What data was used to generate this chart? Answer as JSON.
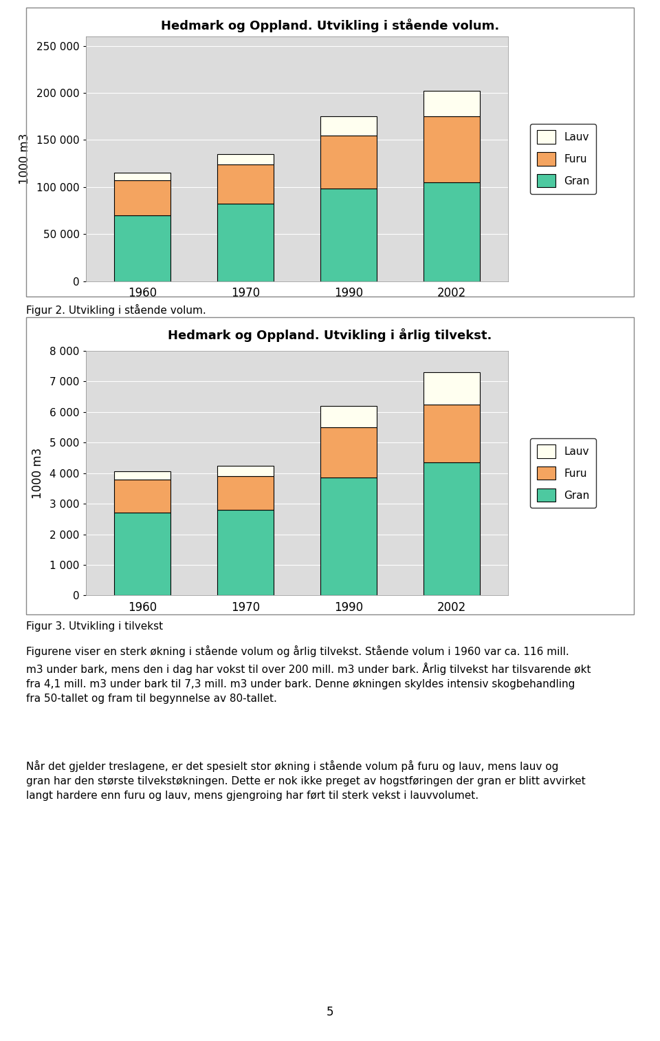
{
  "chart1": {
    "title": "Hedmark og Oppland. Utvikling i stående volum.",
    "ylabel": "1000 m3",
    "years": [
      "1960",
      "1970",
      "1990",
      "2002"
    ],
    "gran": [
      70000,
      82000,
      98000,
      105000
    ],
    "furu": [
      37000,
      42000,
      57000,
      70000
    ],
    "lauv": [
      8000,
      11000,
      20000,
      27000
    ],
    "ylim": [
      0,
      260000
    ],
    "yticks": [
      0,
      50000,
      100000,
      150000,
      200000,
      250000
    ],
    "ytick_labels": [
      "0",
      "50 000",
      "100 000",
      "150 000",
      "200 000",
      "250 000"
    ]
  },
  "chart2": {
    "title": "Hedmark og Oppland. Utvikling i årlig tilvekst.",
    "ylabel": "1000 m3",
    "years": [
      "1960",
      "1970",
      "1990",
      "2002"
    ],
    "gran": [
      2700,
      2800,
      3850,
      4350
    ],
    "furu": [
      1100,
      1100,
      1650,
      1900
    ],
    "lauv": [
      250,
      350,
      700,
      1050
    ],
    "ylim": [
      0,
      8000
    ],
    "yticks": [
      0,
      1000,
      2000,
      3000,
      4000,
      5000,
      6000,
      7000,
      8000
    ],
    "ytick_labels": [
      "0",
      "1 000",
      "2 000",
      "3 000",
      "4 000",
      "5 000",
      "6 000",
      "7 000",
      "8 000"
    ]
  },
  "colors": {
    "gran": "#4DC9A0",
    "furu": "#F4A460",
    "lauv": "#FFFFF0"
  },
  "bar_edge_color": "#000000",
  "bar_width": 0.55,
  "bg_color": "#DCDCDC",
  "fig_bg": "#FFFFFF",
  "figcaption1": "Figur 2. Utvikling i stående volum.",
  "figcaption2": "Figur 3. Utvikling i tilvekst",
  "body_text1_line1": "Figurene viser en sterk økning i stående volum og årlig tilvekst. Stående volum i 1960 var ca. 116 mill.",
  "body_text1_line2": "m3 under bark, mens den i dag har vokst til over 200 mill. m3 under bark. Årlig tilvekst har tilsvarende økt",
  "body_text1_line3": "fra 4,1 mill. m3 under bark til 7,3 mill. m3 under bark. Denne økningen skyldes intensiv skogbehandling",
  "body_text1_line4": "fra 50-tallet og fram til begynnelse av 80-tallet.",
  "body_text2_line1": "Når det gjelder treslagene, er det spesielt stor økning i stående volum på furu og lauv, mens lauv og",
  "body_text2_line2": "gran har den største tilvekstøkningen. Dette er nok ikke preget av hogstføringen der gran er blitt avvirket",
  "body_text2_line3": "langt hardere enn furu og lauv, mens gjengroing har ført til sterk vekst i lauvvolumet.",
  "page_number": "5"
}
